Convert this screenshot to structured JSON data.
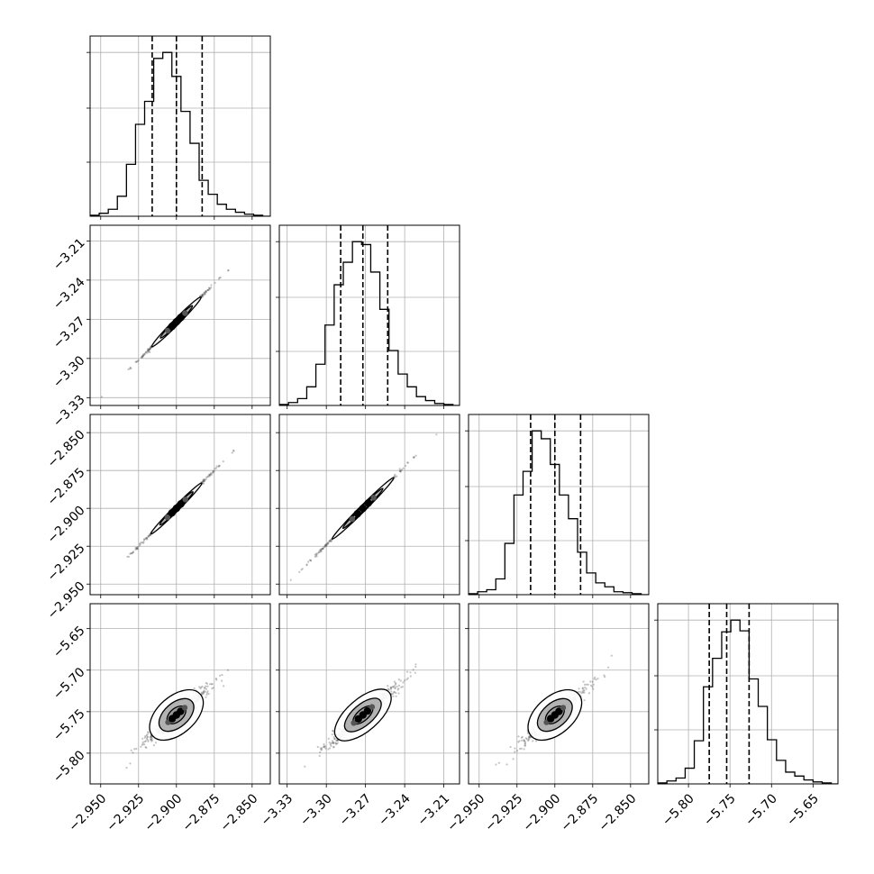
{
  "chart_data": {
    "type": "corner",
    "parameters": 4,
    "colors": {
      "hist": "#000000",
      "grid": "#b0b0b0",
      "frame": "#000000",
      "points": "#555555",
      "contour_fill": "#9a9a9a"
    },
    "grid": true,
    "axes": [
      {
        "ticks": [
          -2.95,
          -2.925,
          -2.9,
          -2.875,
          -2.85
        ],
        "tick_labels": [
          "−2.950",
          "−2.925",
          "−2.900",
          "−2.875",
          "−2.850"
        ],
        "range": [
          -2.957,
          -2.838
        ],
        "quantiles": [
          -2.916,
          -2.9,
          -2.883
        ],
        "hist": {
          "edges": [
            -2.957,
            -2.951,
            -2.945,
            -2.939,
            -2.933,
            -2.927,
            -2.921,
            -2.915,
            -2.909,
            -2.903,
            -2.897,
            -2.891,
            -2.885,
            -2.879,
            -2.873,
            -2.867,
            -2.861,
            -2.855,
            -2.849,
            -2.843,
            -2.838
          ],
          "counts": [
            1,
            3,
            7,
            20,
            52,
            92,
            115,
            158,
            164,
            140,
            105,
            73,
            36,
            22,
            12,
            7,
            4,
            2,
            1,
            0
          ]
        }
      },
      {
        "ticks": [
          -3.33,
          -3.3,
          -3.27,
          -3.24,
          -3.21
        ],
        "tick_labels": [
          "−3.33",
          "−3.30",
          "−3.27",
          "−3.24",
          "−3.21"
        ],
        "range": [
          -3.336,
          -3.198
        ],
        "quantiles": [
          -3.289,
          -3.272,
          -3.253
        ],
        "hist": {
          "edges": [
            -3.336,
            -3.329,
            -3.322,
            -3.315,
            -3.308,
            -3.301,
            -3.294,
            -3.287,
            -3.28,
            -3.273,
            -3.266,
            -3.259,
            -3.252,
            -3.245,
            -3.238,
            -3.231,
            -3.224,
            -3.217,
            -3.21,
            -3.203,
            -3.198
          ],
          "counts": [
            1,
            3,
            7,
            19,
            42,
            82,
            123,
            146,
            167,
            164,
            136,
            98,
            56,
            32,
            19,
            9,
            5,
            2,
            1,
            0
          ]
        }
      },
      {
        "ticks": [
          -2.95,
          -2.925,
          -2.9,
          -2.875,
          -2.85
        ],
        "tick_labels": [
          "−2.950",
          "−2.925",
          "−2.900",
          "−2.875",
          "−2.850"
        ],
        "range": [
          -2.957,
          -2.838
        ],
        "quantiles": [
          -2.916,
          -2.9,
          -2.883
        ],
        "hist": {
          "edges": [
            -2.957,
            -2.951,
            -2.945,
            -2.939,
            -2.933,
            -2.927,
            -2.921,
            -2.915,
            -2.909,
            -2.903,
            -2.897,
            -2.891,
            -2.885,
            -2.879,
            -2.873,
            -2.867,
            -2.861,
            -2.855,
            -2.849,
            -2.843,
            -2.838
          ],
          "counts": [
            1,
            3,
            5,
            16,
            52,
            101,
            125,
            166,
            158,
            132,
            101,
            77,
            43,
            22,
            12,
            8,
            3,
            2,
            1,
            0
          ]
        }
      },
      {
        "ticks": [
          -5.8,
          -5.75,
          -5.7,
          -5.65
        ],
        "tick_labels": [
          "−5.80",
          "−5.75",
          "−5.70",
          "−5.65"
        ],
        "range": [
          -5.837,
          -5.62
        ],
        "quantiles": [
          -5.775,
          -5.754,
          -5.727
        ],
        "hist": {
          "edges": [
            -5.837,
            -5.826,
            -5.815,
            -5.804,
            -5.793,
            -5.782,
            -5.771,
            -5.76,
            -5.749,
            -5.738,
            -5.727,
            -5.716,
            -5.705,
            -5.694,
            -5.683,
            -5.672,
            -5.661,
            -5.65,
            -5.639,
            -5.628,
            -5.62
          ],
          "counts": [
            1,
            3,
            6,
            16,
            44,
            99,
            128,
            155,
            167,
            156,
            107,
            79,
            45,
            24,
            12,
            8,
            4,
            2,
            1,
            0
          ]
        }
      }
    ],
    "pairs": [
      {
        "row": 1,
        "col": 0,
        "slope": 1.17,
        "sigma_along": 0.0125,
        "sigma_across": 0.00035
      },
      {
        "row": 2,
        "col": 0,
        "slope": 1.0,
        "sigma_along": 0.0119,
        "sigma_across": 0.0003
      },
      {
        "row": 2,
        "col": 1,
        "slope": 0.86,
        "sigma_along": 0.0155,
        "sigma_across": 0.00035
      },
      {
        "row": 3,
        "col": 0,
        "slope": 1.6,
        "sigma_along": 0.0148,
        "sigma_across": 0.0023
      },
      {
        "row": 3,
        "col": 1,
        "slope": 1.37,
        "sigma_along": 0.017,
        "sigma_across": 0.0023
      },
      {
        "row": 3,
        "col": 2,
        "slope": 1.6,
        "sigma_along": 0.0148,
        "sigma_across": 0.0023
      }
    ]
  }
}
